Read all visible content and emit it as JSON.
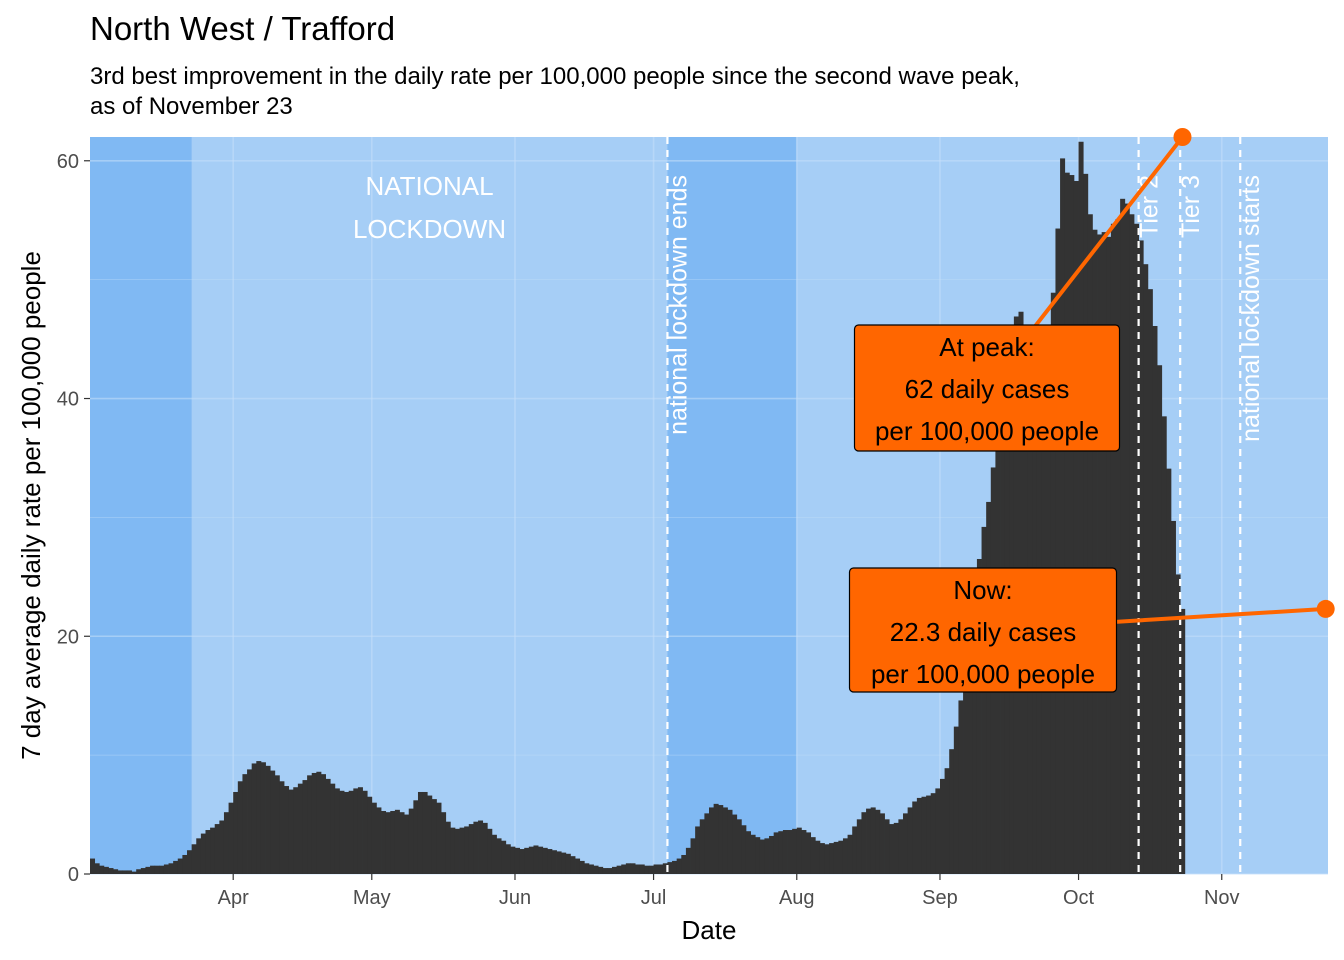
{
  "title": "North West / Trafford",
  "subtitle_lines": [
    "3rd best improvement in the daily rate per 100,000 people since the second wave peak,",
    "as of November 23"
  ],
  "chart_data": {
    "type": "bar",
    "xlabel": "Date",
    "ylabel": "7 day average daily rate per 100,000 people",
    "x_start": "2020-03-01",
    "x_end": "2020-11-23",
    "ylim": [
      0,
      62
    ],
    "y_ticks": [
      0,
      20,
      40,
      60
    ],
    "x_ticks": [
      {
        "date": "2020-04-01",
        "label": "Apr"
      },
      {
        "date": "2020-05-01",
        "label": "May"
      },
      {
        "date": "2020-06-01",
        "label": "Jun"
      },
      {
        "date": "2020-07-01",
        "label": "Jul"
      },
      {
        "date": "2020-08-01",
        "label": "Aug"
      },
      {
        "date": "2020-09-01",
        "label": "Sep"
      },
      {
        "date": "2020-10-01",
        "label": "Oct"
      },
      {
        "date": "2020-11-01",
        "label": "Nov"
      }
    ],
    "grid": true,
    "colors": {
      "background_light": "#a6cef6",
      "background_dark": "#80b9f3",
      "bars": "#333333",
      "annotation": "#ff6600",
      "grid": "#c6e0fa",
      "event_lines": "#ffffff"
    },
    "shaded_periods": [
      {
        "start": "2020-03-01",
        "end": "2020-03-23"
      },
      {
        "start": "2020-07-04",
        "end": "2020-08-01"
      }
    ],
    "lockdown_region": {
      "start": "2020-03-23",
      "end": "2020-07-04",
      "label_lines": [
        "NATIONAL",
        "LOCKDOWN"
      ]
    },
    "events": [
      {
        "date": "2020-07-04",
        "label": "national lockdown ends"
      },
      {
        "date": "2020-10-14",
        "label": "Tier 2"
      },
      {
        "date": "2020-10-23",
        "label": "Tier 3"
      },
      {
        "date": "2020-11-05",
        "label": "national lockdown starts"
      }
    ],
    "series": [
      {
        "values": [
          1.3,
          0.9,
          0.7,
          0.6,
          0.5,
          0.4,
          0.3,
          0.3,
          0.3,
          0.2,
          0.4,
          0.5,
          0.6,
          0.7,
          0.7,
          0.7,
          0.8,
          0.9,
          1.1,
          1.3,
          1.6,
          2.0,
          2.5,
          3.0,
          3.4,
          3.7,
          3.9,
          4.2,
          4.5,
          5.2,
          6.0,
          6.9,
          7.8,
          8.4,
          8.8,
          9.3,
          9.5,
          9.4,
          9.1,
          8.7,
          8.3,
          7.8,
          7.4,
          7.1,
          7.3,
          7.6,
          7.9,
          8.3,
          8.5,
          8.6,
          8.4,
          8.0,
          7.6,
          7.2,
          7.0,
          6.9,
          7.0,
          7.2,
          7.3,
          7.0,
          6.5,
          6.0,
          5.6,
          5.3,
          5.2,
          5.3,
          5.4,
          5.2,
          5.0,
          5.5,
          6.2,
          6.9,
          6.9,
          6.6,
          6.3,
          6.0,
          5.2,
          4.4,
          3.9,
          3.8,
          3.9,
          4.0,
          4.2,
          4.4,
          4.5,
          4.3,
          3.8,
          3.3,
          3.0,
          2.8,
          2.5,
          2.3,
          2.2,
          2.1,
          2.2,
          2.3,
          2.4,
          2.3,
          2.2,
          2.1,
          2.0,
          1.9,
          1.8,
          1.7,
          1.5,
          1.3,
          1.1,
          0.9,
          0.8,
          0.7,
          0.6,
          0.5,
          0.5,
          0.6,
          0.7,
          0.8,
          0.9,
          0.9,
          0.8,
          0.8,
          0.7,
          0.7,
          0.8,
          0.8,
          0.9,
          1.0,
          1.1,
          1.3,
          1.6,
          2.2,
          3.0,
          4.0,
          4.6,
          5.1,
          5.6,
          5.9,
          5.8,
          5.6,
          5.4,
          5.0,
          4.6,
          4.1,
          3.6,
          3.3,
          3.1,
          2.9,
          3.0,
          3.2,
          3.5,
          3.6,
          3.7,
          3.7,
          3.8,
          3.9,
          3.7,
          3.5,
          3.1,
          2.8,
          2.6,
          2.5,
          2.6,
          2.7,
          2.8,
          3.0,
          3.3,
          4.0,
          4.6,
          5.2,
          5.5,
          5.6,
          5.4,
          5.1,
          4.6,
          4.2,
          4.3,
          4.6,
          5.1,
          5.6,
          6.1,
          6.4,
          6.5,
          6.6,
          6.8,
          7.2,
          8.0,
          8.9,
          10.5,
          12.4,
          14.6,
          17.1,
          20.0,
          23.4,
          26.5,
          29.2,
          31.3,
          34.2,
          35.8,
          39.1,
          42.5,
          44.9,
          46.9,
          47.3,
          45.8,
          44.5,
          43.8,
          44.2,
          44.8,
          45.4,
          48.9,
          54.3,
          60.2,
          59.0,
          58.8,
          58.3,
          61.6,
          58.9,
          55.5,
          54.2,
          53.8,
          54.0,
          53.6,
          54.7,
          55.1,
          56.8,
          56.4,
          55.5,
          54.7,
          53.3,
          51.3,
          49.2,
          46.1,
          42.8,
          38.5,
          34.1,
          29.7,
          25.2,
          22.3
        ]
      }
    ],
    "annotations": [
      {
        "lines": [
          "At peak:",
          "62 daily cases",
          "per 100,000 people"
        ],
        "point_date": "2020-10-23",
        "point_value": 62
      },
      {
        "lines": [
          "Now:",
          "22.3 daily cases",
          "per 100,000 people"
        ],
        "point_date": "2020-11-23",
        "point_value": 22.3
      }
    ]
  }
}
